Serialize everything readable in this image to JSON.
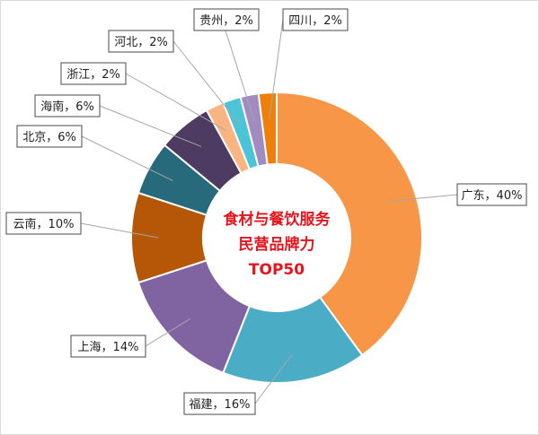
{
  "chart_data": {
    "type": "pie",
    "donut": true,
    "title": "",
    "center_title_lines": [
      "食材与餐饮服务",
      "民营品牌力",
      "TOP50"
    ],
    "slices": [
      {
        "name": "广东",
        "value": 40,
        "label": "广东，40%",
        "color": "#f79646"
      },
      {
        "name": "福建",
        "value": 16,
        "label": "福建，16%",
        "color": "#4bacc6"
      },
      {
        "name": "上海",
        "value": 14,
        "label": "上海，14%",
        "color": "#8064a2"
      },
      {
        "name": "云南",
        "value": 10,
        "label": "云南，10%",
        "color": "#b65708"
      },
      {
        "name": "北京",
        "value": 6,
        "label": "北京，6%",
        "color": "#276a7c"
      },
      {
        "name": "海南",
        "value": 6,
        "label": "海南，6%",
        "color": "#4d3b62"
      },
      {
        "name": "浙江",
        "value": 2,
        "label": "浙江，2%",
        "color": "#f9b482"
      },
      {
        "name": "河北",
        "value": 2,
        "label": "河北，2%",
        "color": "#4bc4d8"
      },
      {
        "name": "贵州",
        "value": 2,
        "label": "贵州，2%",
        "color": "#a18bc0"
      },
      {
        "name": "四川",
        "value": 2,
        "label": "四川，2%",
        "color": "#f07f09"
      }
    ],
    "legend": "none",
    "data_labels": "outside-with-leader-lines"
  }
}
